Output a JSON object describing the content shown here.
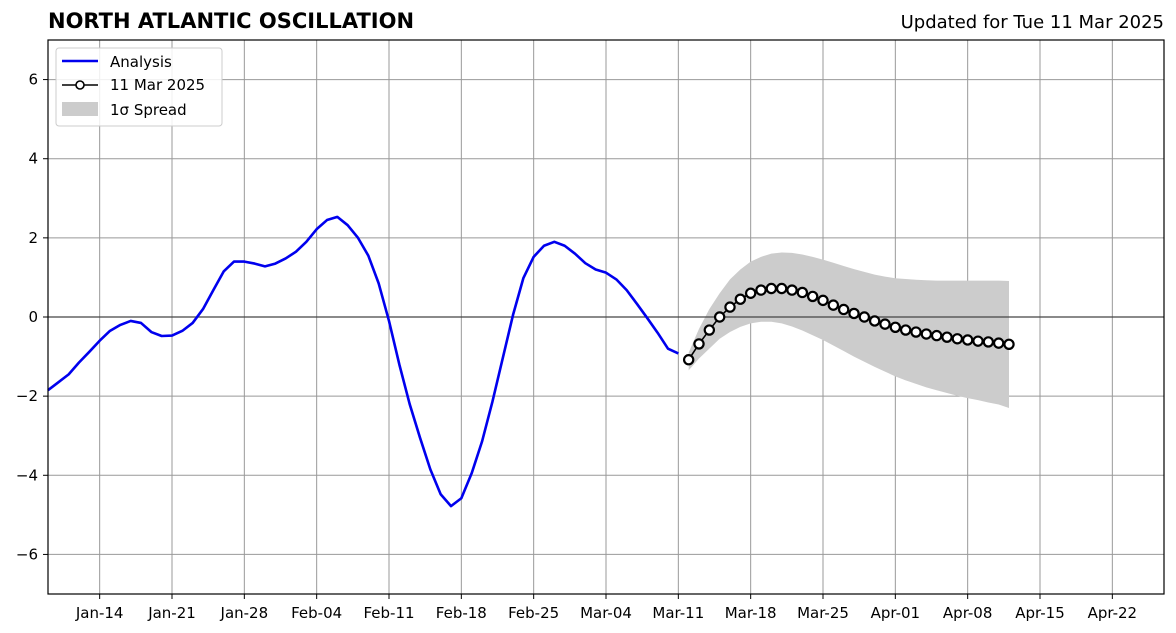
{
  "chart_data": {
    "type": "line",
    "title": "NORTH ATLANTIC OSCILLATION",
    "subtitle": "Updated for Tue 11 Mar 2025",
    "xlabel": "",
    "ylabel": "",
    "ylim": [
      -7,
      7
    ],
    "yticks": [
      -6,
      -4,
      -2,
      0,
      2,
      4,
      6
    ],
    "ytick_labels": [
      "−6",
      "−4",
      "−2",
      "0",
      "2",
      "4",
      "6"
    ],
    "xlim": [
      "2025-01-09",
      "2025-04-27"
    ],
    "xticks": [
      "2025-01-14",
      "2025-01-21",
      "2025-01-28",
      "2025-02-04",
      "2025-02-11",
      "2025-02-18",
      "2025-02-25",
      "2025-03-04",
      "2025-03-11",
      "2025-03-18",
      "2025-03-25",
      "2025-04-01",
      "2025-04-08",
      "2025-04-15",
      "2025-04-22"
    ],
    "xtick_labels": [
      "Jan-14",
      "Jan-21",
      "Jan-28",
      "Feb-04",
      "Feb-11",
      "Feb-18",
      "Feb-25",
      "Mar-04",
      "Mar-11",
      "Mar-18",
      "Mar-25",
      "Apr-01",
      "Apr-08",
      "Apr-15",
      "Apr-22"
    ],
    "grid": true,
    "legend_position": "top-left",
    "colors": {
      "analysis": "#0000ee",
      "forecast": "#000000",
      "marker_fill": "#ffffff",
      "spread": "#cccccc",
      "grid": "#999999"
    },
    "series": [
      {
        "name": "Analysis",
        "x": [
          "2025-01-09",
          "2025-01-10",
          "2025-01-11",
          "2025-01-12",
          "2025-01-13",
          "2025-01-14",
          "2025-01-15",
          "2025-01-16",
          "2025-01-17",
          "2025-01-18",
          "2025-01-19",
          "2025-01-20",
          "2025-01-21",
          "2025-01-22",
          "2025-01-23",
          "2025-01-24",
          "2025-01-25",
          "2025-01-26",
          "2025-01-27",
          "2025-01-28",
          "2025-01-29",
          "2025-01-30",
          "2025-01-31",
          "2025-02-01",
          "2025-02-02",
          "2025-02-03",
          "2025-02-04",
          "2025-02-05",
          "2025-02-06",
          "2025-02-07",
          "2025-02-08",
          "2025-02-09",
          "2025-02-10",
          "2025-02-11",
          "2025-02-12",
          "2025-02-13",
          "2025-02-14",
          "2025-02-15",
          "2025-02-16",
          "2025-02-17",
          "2025-02-18",
          "2025-02-19",
          "2025-02-20",
          "2025-02-21",
          "2025-02-22",
          "2025-02-23",
          "2025-02-24",
          "2025-02-25",
          "2025-02-26",
          "2025-02-27",
          "2025-02-28",
          "2025-03-01",
          "2025-03-02",
          "2025-03-03",
          "2025-03-04",
          "2025-03-05",
          "2025-03-06",
          "2025-03-07",
          "2025-03-08",
          "2025-03-09",
          "2025-03-10",
          "2025-03-11"
        ],
        "y": [
          -1.85,
          -1.65,
          -1.45,
          -1.15,
          -0.88,
          -0.6,
          -0.35,
          -0.2,
          -0.1,
          -0.15,
          -0.38,
          -0.48,
          -0.47,
          -0.35,
          -0.15,
          0.2,
          0.68,
          1.15,
          1.4,
          1.4,
          1.35,
          1.28,
          1.35,
          1.48,
          1.65,
          1.9,
          2.22,
          2.45,
          2.53,
          2.32,
          2.0,
          1.55,
          0.85,
          -0.1,
          -1.2,
          -2.2,
          -3.05,
          -3.85,
          -4.48,
          -4.78,
          -4.58,
          -3.95,
          -3.15,
          -2.15,
          -1.05,
          0.05,
          0.98,
          1.52,
          1.8,
          1.9,
          1.8,
          1.6,
          1.36,
          1.2,
          1.12,
          0.95,
          0.68,
          0.33,
          -0.03,
          -0.4,
          -0.8,
          -0.92
        ]
      },
      {
        "name": "11 Mar 2025",
        "x": [
          "2025-03-12",
          "2025-03-13",
          "2025-03-14",
          "2025-03-15",
          "2025-03-16",
          "2025-03-17",
          "2025-03-18",
          "2025-03-19",
          "2025-03-20",
          "2025-03-21",
          "2025-03-22",
          "2025-03-23",
          "2025-03-24",
          "2025-03-25",
          "2025-03-26",
          "2025-03-27",
          "2025-03-28",
          "2025-03-29",
          "2025-03-30",
          "2025-03-31",
          "2025-04-01",
          "2025-04-02",
          "2025-04-03",
          "2025-04-04",
          "2025-04-05",
          "2025-04-06",
          "2025-04-07",
          "2025-04-08",
          "2025-04-09",
          "2025-04-10",
          "2025-04-11",
          "2025-04-12"
        ],
        "y": [
          -1.08,
          -0.68,
          -0.33,
          0.0,
          0.25,
          0.45,
          0.6,
          0.68,
          0.72,
          0.72,
          0.68,
          0.62,
          0.52,
          0.42,
          0.3,
          0.19,
          0.09,
          0.0,
          -0.1,
          -0.18,
          -0.26,
          -0.33,
          -0.38,
          -0.43,
          -0.47,
          -0.51,
          -0.55,
          -0.58,
          -0.61,
          -0.63,
          -0.66,
          -0.69
        ]
      }
    ],
    "spread": {
      "name": "1σ Spread",
      "x": [
        "2025-03-12",
        "2025-03-13",
        "2025-03-14",
        "2025-03-15",
        "2025-03-16",
        "2025-03-17",
        "2025-03-18",
        "2025-03-19",
        "2025-03-20",
        "2025-03-21",
        "2025-03-22",
        "2025-03-23",
        "2025-03-24",
        "2025-03-25",
        "2025-03-26",
        "2025-03-27",
        "2025-03-28",
        "2025-03-29",
        "2025-03-30",
        "2025-03-31",
        "2025-04-01",
        "2025-04-02",
        "2025-04-03",
        "2025-04-04",
        "2025-04-05",
        "2025-04-06",
        "2025-04-07",
        "2025-04-08",
        "2025-04-09",
        "2025-04-10",
        "2025-04-11",
        "2025-04-12"
      ],
      "upper": [
        -0.9,
        -0.3,
        0.2,
        0.6,
        0.95,
        1.2,
        1.4,
        1.52,
        1.6,
        1.63,
        1.62,
        1.58,
        1.52,
        1.45,
        1.37,
        1.29,
        1.21,
        1.14,
        1.07,
        1.02,
        0.98,
        0.96,
        0.94,
        0.93,
        0.92,
        0.92,
        0.92,
        0.92,
        0.92,
        0.92,
        0.92,
        0.91
      ],
      "lower": [
        -1.35,
        -1.05,
        -0.8,
        -0.55,
        -0.38,
        -0.25,
        -0.16,
        -0.12,
        -0.12,
        -0.16,
        -0.24,
        -0.34,
        -0.46,
        -0.58,
        -0.72,
        -0.86,
        -1.0,
        -1.13,
        -1.26,
        -1.38,
        -1.5,
        -1.6,
        -1.69,
        -1.78,
        -1.85,
        -1.92,
        -1.99,
        -2.05,
        -2.1,
        -2.16,
        -2.21,
        -2.3
      ]
    }
  }
}
